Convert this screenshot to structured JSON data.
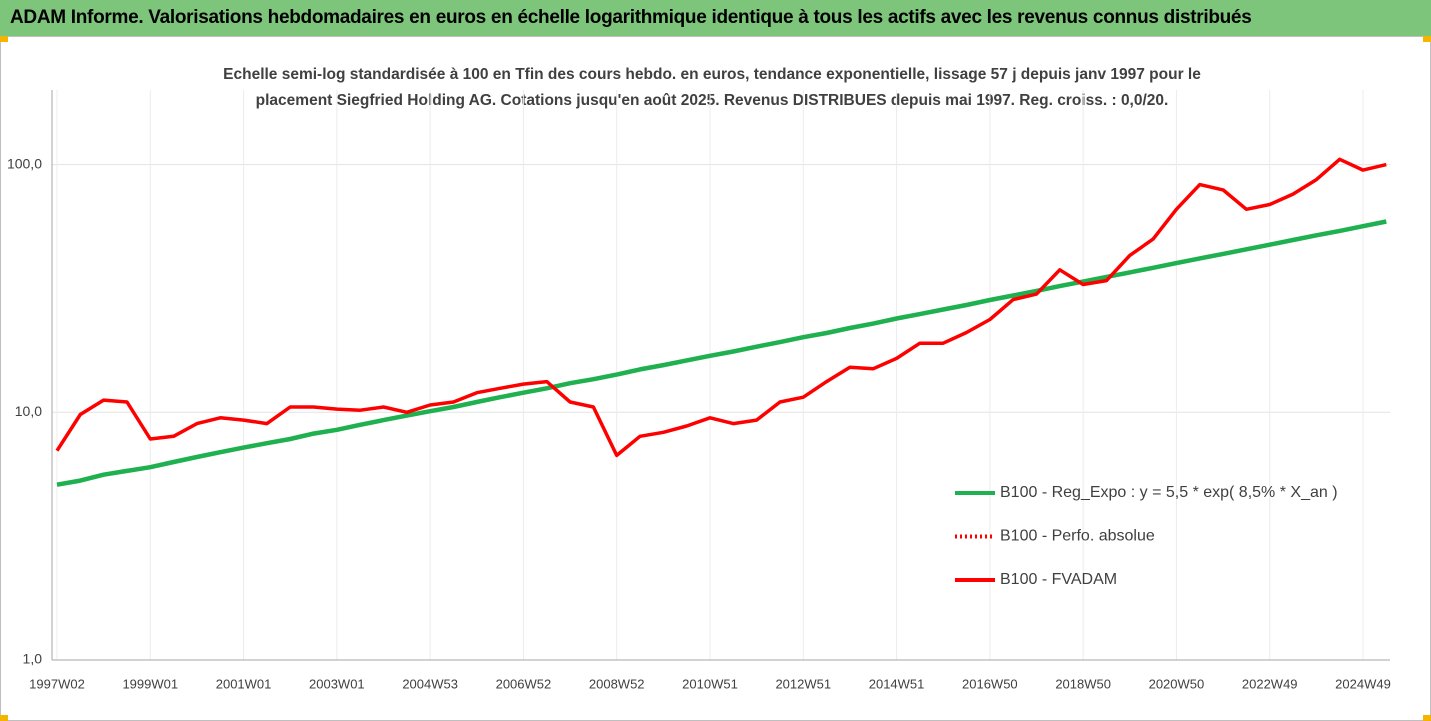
{
  "header": {
    "title": "ADAM Informe. Valorisations hebdomadaires en euros en échelle logarithmique identique à tous les actifs avec les revenus connus distribués"
  },
  "chart_data": {
    "type": "line",
    "subtitle": [
      "Echelle semi-log standardisée à 100 en Tfin des cours hebdo. en euros, tendance exponentielle, lissage 57 j depuis janv 1997 pour le",
      "placement Siegfried  Holding AG. Cotations jusqu'en août 2025. Revenus DISTRIBUES depuis mai 1997. Reg. croiss. : 0,0/20."
    ],
    "categories": [
      "1997W02",
      null,
      null,
      null,
      "1999W01",
      null,
      null,
      null,
      "2001W01",
      null,
      null,
      null,
      "2003W01",
      null,
      null,
      null,
      "2004W53",
      null,
      null,
      null,
      "2006W52",
      null,
      null,
      null,
      "2008W52",
      null,
      null,
      null,
      "2010W51",
      null,
      null,
      null,
      "2012W51",
      null,
      null,
      null,
      "2014W51",
      null,
      null,
      null,
      "2016W50",
      null,
      null,
      null,
      "2018W50",
      null,
      null,
      null,
      "2020W50",
      null,
      null,
      null,
      "2022W49",
      null,
      null,
      null,
      "2024W49",
      null
    ],
    "series": [
      {
        "name": "B100 - Reg_Expo : y = 5,5 * exp( 8,5% *  X_an )",
        "color": "#1fb04f",
        "style": "solid",
        "values": [
          5.1,
          5.3,
          5.6,
          5.8,
          6.0,
          6.3,
          6.6,
          6.9,
          7.2,
          7.5,
          7.8,
          8.2,
          8.5,
          8.9,
          9.3,
          9.7,
          10.1,
          10.5,
          11.0,
          11.5,
          12.0,
          12.5,
          13.1,
          13.6,
          14.2,
          14.9,
          15.5,
          16.2,
          16.9,
          17.6,
          18.4,
          19.2,
          20.1,
          20.9,
          21.9,
          22.8,
          23.9,
          24.9,
          26.0,
          27.1,
          28.4,
          29.6,
          30.9,
          32.3,
          33.7,
          35.2,
          36.7,
          38.3,
          40.0,
          41.8,
          43.6,
          45.5,
          47.5,
          49.6,
          51.8,
          54.0,
          56.4,
          58.9
        ]
      },
      {
        "name": "B100 - Perfo. absolue",
        "color": "#ff0000",
        "style": "dotted",
        "values": [
          null,
          null,
          null,
          null,
          null,
          null,
          null,
          null,
          null,
          null,
          null,
          null,
          null,
          null,
          null,
          null,
          null,
          null,
          null,
          null,
          null,
          null,
          null,
          null,
          null,
          null,
          null,
          null,
          null,
          null,
          null,
          null,
          null,
          null,
          null,
          null,
          null,
          null,
          null,
          null,
          null,
          null,
          null,
          null,
          null,
          null,
          null,
          null,
          null,
          null,
          null,
          null,
          null,
          null,
          null,
          null,
          null,
          null
        ]
      },
      {
        "name": "B100 - FVADAM",
        "color": "#ff0000",
        "style": "solid",
        "values": [
          7.0,
          9.8,
          11.2,
          11,
          7.8,
          8,
          9,
          9.5,
          9.3,
          9,
          10.5,
          10.5,
          10.3,
          10.2,
          10.5,
          10,
          10.7,
          11,
          12,
          12.5,
          13,
          13.3,
          11,
          10.5,
          6.7,
          8,
          8.3,
          8.8,
          9.5,
          9,
          9.3,
          11,
          11.5,
          13.3,
          15.2,
          15,
          16.5,
          19,
          19,
          21,
          23.7,
          28.5,
          30,
          37.6,
          32.8,
          34,
          43,
          50,
          66,
          83,
          79,
          66,
          69,
          76,
          87,
          105,
          95,
          100
        ]
      }
    ],
    "log_scale": true,
    "ylim": [
      1,
      200
    ],
    "yticks": [
      {
        "value": 1,
        "label": "1,0"
      },
      {
        "value": 10,
        "label": "10,0"
      },
      {
        "value": 100,
        "label": "100,0"
      }
    ],
    "grid": true,
    "legend": "lower right"
  }
}
